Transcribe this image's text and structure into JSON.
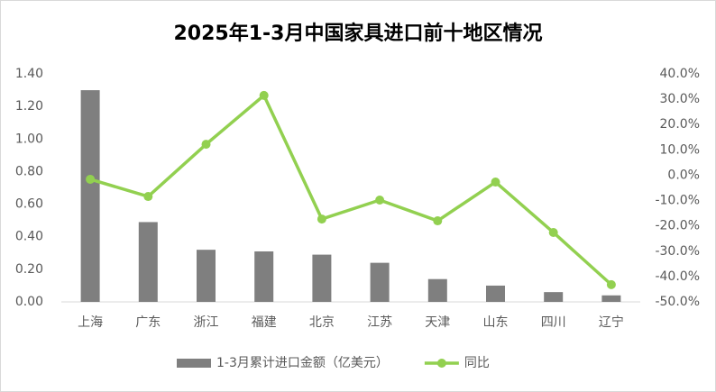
{
  "chart_data": {
    "type": "bar_line",
    "title": "2025年1-3月中国家具进口前十地区情况",
    "categories": [
      "上海",
      "广东",
      "浙江",
      "福建",
      "北京",
      "江苏",
      "天津",
      "山东",
      "四川",
      "辽宁"
    ],
    "series": [
      {
        "name": "1-3月累计进口金额（亿美元）",
        "type": "bar",
        "color": "#7f7f7f",
        "values": [
          1.3,
          0.49,
          0.32,
          0.31,
          0.29,
          0.24,
          0.14,
          0.1,
          0.06,
          0.04
        ]
      },
      {
        "name": "同比",
        "type": "line",
        "axis": "y2",
        "color": "#92d050",
        "values": [
          -1.6,
          -8.4,
          12.2,
          31.5,
          -17.3,
          -9.8,
          -18.0,
          -2.7,
          -22.6,
          -43.2
        ]
      }
    ],
    "ylim": [
      0,
      1.4
    ],
    "yticks": [
      {
        "value": 0,
        "label": "0.00"
      },
      {
        "value": 0.2,
        "label": "0.20"
      },
      {
        "value": 0.4,
        "label": "0.40"
      },
      {
        "value": 0.6,
        "label": "0.60"
      },
      {
        "value": 0.8,
        "label": "0.80"
      },
      {
        "value": 1.0,
        "label": "1.00"
      },
      {
        "value": 1.2,
        "label": "1.20"
      },
      {
        "value": 1.4,
        "label": "1.40"
      }
    ],
    "y2lim": [
      -50,
      40
    ],
    "y2ticks": [
      {
        "value": -50,
        "label": "-50.0%"
      },
      {
        "value": -40,
        "label": "-40.0%"
      },
      {
        "value": -30,
        "label": "-30.0%"
      },
      {
        "value": -20,
        "label": "-20.0%"
      },
      {
        "value": -10,
        "label": "-10.0%"
      },
      {
        "value": 0,
        "label": "0.0%"
      },
      {
        "value": 10,
        "label": "10.0%"
      },
      {
        "value": 20,
        "label": "20.0%"
      },
      {
        "value": 30,
        "label": "30.0%"
      },
      {
        "value": 40,
        "label": "40.0%"
      }
    ],
    "legend": "bottom"
  }
}
